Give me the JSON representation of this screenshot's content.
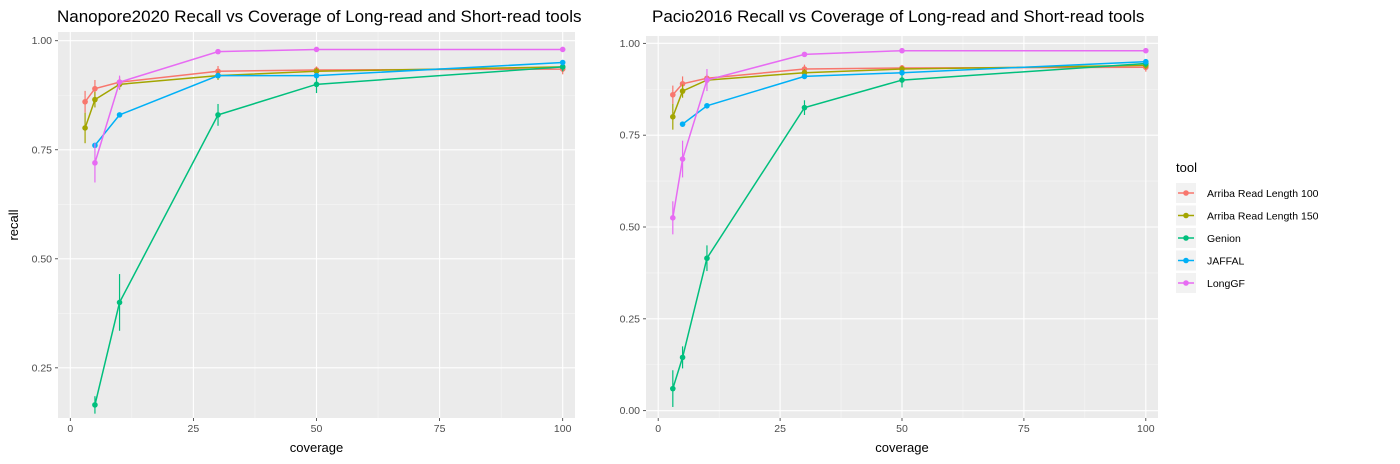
{
  "chart_data": {
    "type": "line",
    "series_names": [
      "Arriba Read Length 100",
      "Arriba Read Length 150",
      "Genion",
      "JAFFAL",
      "LongGF"
    ],
    "colors": {
      "Arriba Read Length 100": "#F8766D",
      "Arriba Read Length 150": "#A3A500",
      "Genion": "#00BF7D",
      "JAFFAL": "#00B0F6",
      "LongGF": "#E76BF3"
    },
    "legend": {
      "title": "tool",
      "position": "right"
    },
    "grid": true,
    "panels": [
      {
        "title": "Nanopore2020 Recall vs Coverage of Long-read and Short-read tools",
        "xlabel": "coverage",
        "ylabel": "recall",
        "xlim": [
          -2.5,
          102.5
        ],
        "ylim": [
          0.135,
          1.02
        ],
        "xticks": [
          0,
          25,
          50,
          75,
          100
        ],
        "xtick_labels": [
          "0",
          "25",
          "50",
          "75",
          "100"
        ],
        "yticks": [
          0.25,
          0.5,
          0.75,
          1.0
        ],
        "ytick_labels": [
          "0.25",
          "0.50",
          "0.75",
          "1.00"
        ],
        "series": [
          {
            "name": "Arriba Read Length 100",
            "x": [
              3,
              5,
              10,
              30,
              50,
              100
            ],
            "y": [
              0.86,
              0.89,
              0.905,
              0.93,
              0.933,
              0.935
            ],
            "err": [
              0.025,
              0.02,
              0.012,
              0.012,
              0.008,
              0.012
            ]
          },
          {
            "name": "Arriba Read Length 150",
            "x": [
              3,
              5,
              10,
              30,
              50,
              100
            ],
            "y": [
              0.8,
              0.865,
              0.9,
              0.92,
              0.93,
              0.94
            ],
            "err": [
              0.035,
              0.018,
              0.012,
              0.01,
              0.008,
              0.01
            ]
          },
          {
            "name": "Genion",
            "x": [
              5,
              10,
              30,
              50,
              100
            ],
            "y": [
              0.165,
              0.4,
              0.83,
              0.9,
              0.94
            ],
            "err": [
              0.02,
              0.065,
              0.025,
              0.02,
              0.01
            ]
          },
          {
            "name": "JAFFAL",
            "x": [
              5,
              10,
              30,
              50,
              100
            ],
            "y": [
              0.76,
              0.83,
              0.92,
              0.92,
              0.95
            ],
            "err": [
              0.0,
              0.0,
              0.0,
              0.0,
              0.0
            ]
          },
          {
            "name": "LongGF",
            "x": [
              5,
              10,
              30,
              50,
              100
            ],
            "y": [
              0.72,
              0.905,
              0.975,
              0.98,
              0.98
            ],
            "err": [
              0.045,
              0.015,
              0.0,
              0.0,
              0.0
            ]
          }
        ]
      },
      {
        "title": "Pacio2016 Recall vs Coverage of Long-read and Short-read tools",
        "xlabel": "coverage",
        "ylabel": "",
        "xlim": [
          -2.5,
          102.5
        ],
        "ylim": [
          -0.02,
          1.02
        ],
        "xticks": [
          0,
          25,
          50,
          75,
          100
        ],
        "xtick_labels": [
          "0",
          "25",
          "50",
          "75",
          "100"
        ],
        "yticks": [
          0.0,
          0.25,
          0.5,
          0.75,
          1.0
        ],
        "ytick_labels": [
          "0.00",
          "0.25",
          "0.50",
          "0.75",
          "1.00"
        ],
        "series": [
          {
            "name": "Arriba Read Length 100",
            "x": [
              3,
              5,
              10,
              30,
              50,
              100
            ],
            "y": [
              0.86,
              0.89,
              0.905,
              0.93,
              0.933,
              0.935
            ],
            "err": [
              0.025,
              0.02,
              0.012,
              0.012,
              0.008,
              0.012
            ]
          },
          {
            "name": "Arriba Read Length 150",
            "x": [
              3,
              5,
              10,
              30,
              50,
              100
            ],
            "y": [
              0.8,
              0.87,
              0.9,
              0.92,
              0.93,
              0.94
            ],
            "err": [
              0.035,
              0.018,
              0.012,
              0.01,
              0.008,
              0.01
            ]
          },
          {
            "name": "Genion",
            "x": [
              3,
              5,
              10,
              30,
              50,
              100
            ],
            "y": [
              0.06,
              0.145,
              0.415,
              0.825,
              0.9,
              0.945
            ],
            "err": [
              0.05,
              0.03,
              0.035,
              0.02,
              0.02,
              0.01
            ]
          },
          {
            "name": "JAFFAL",
            "x": [
              5,
              10,
              30,
              50,
              100
            ],
            "y": [
              0.78,
              0.83,
              0.91,
              0.92,
              0.95
            ],
            "err": [
              0.0,
              0.0,
              0.0,
              0.0,
              0.0
            ]
          },
          {
            "name": "LongGF",
            "x": [
              3,
              5,
              10,
              30,
              50,
              100
            ],
            "y": [
              0.525,
              0.685,
              0.9,
              0.97,
              0.98,
              0.98
            ],
            "err": [
              0.045,
              0.05,
              0.03,
              0.0,
              0.0,
              0.0
            ]
          }
        ]
      }
    ]
  }
}
